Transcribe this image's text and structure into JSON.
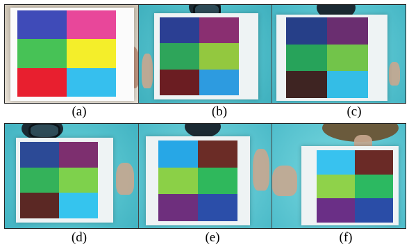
{
  "figure": {
    "row1": [
      {
        "label": "(a)",
        "setting": "air",
        "cells": [
          "#3f4bb8",
          "#e8479a",
          "#47c256",
          "#f4ee2a",
          "#e81f2f",
          "#36bfee"
        ]
      },
      {
        "label": "(b)",
        "setting": "underwater",
        "cells": [
          "#2b3f93",
          "#8a2f71",
          "#2ea55a",
          "#93c83f",
          "#6b1d22",
          "#2d9be0"
        ]
      },
      {
        "label": "(c)",
        "setting": "underwater",
        "cells": [
          "#263f88",
          "#6a2e70",
          "#27a35a",
          "#72c44a",
          "#3e2422",
          "#34bde6"
        ]
      }
    ],
    "row2": [
      {
        "label": "(d)",
        "setting": "underwater",
        "cells": [
          "#2c4a96",
          "#7d2f6f",
          "#34b25a",
          "#7ed14c",
          "#5b2824",
          "#35c4ee"
        ]
      },
      {
        "label": "(e)",
        "setting": "underwater",
        "cells": [
          "#27a7e6",
          "#6b2c26",
          "#8bd047",
          "#2fb85c",
          "#6e2f7d",
          "#2b4ea9"
        ]
      },
      {
        "label": "(f)",
        "setting": "underwater",
        "cells": [
          "#38c2ef",
          "#6a2a26",
          "#8fd24a",
          "#2cb961",
          "#6a2f86",
          "#2a4da7"
        ]
      }
    ],
    "colors": {
      "water": "#58c7d2",
      "water_deep": "#3fb2c3",
      "air_bg": "#d9d2c4"
    }
  }
}
